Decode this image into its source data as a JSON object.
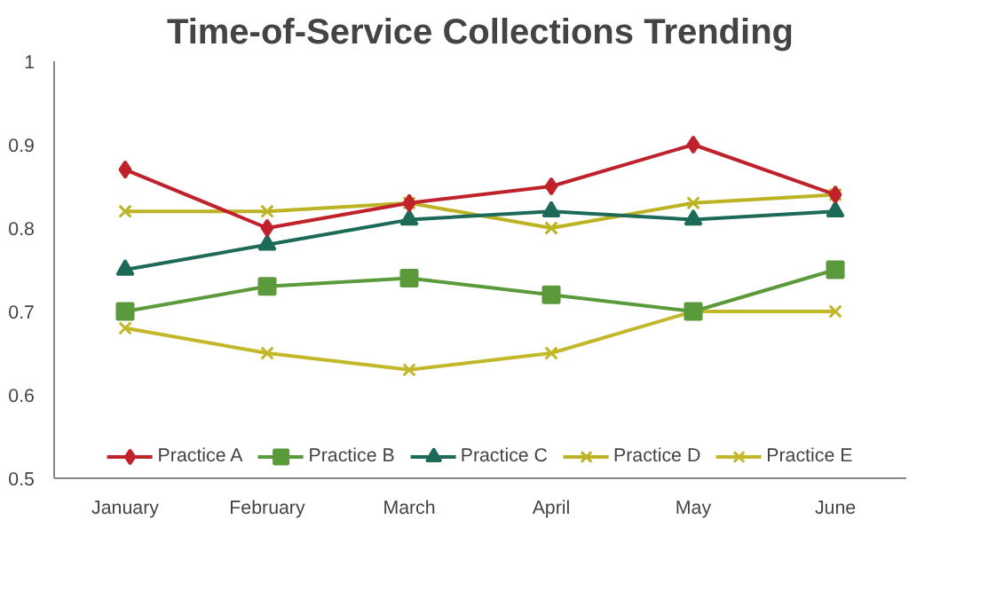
{
  "chart_data": {
    "type": "line",
    "title": "Time-of-Service Collections Trending",
    "categories": [
      "January",
      "February",
      "March",
      "April",
      "May",
      "June"
    ],
    "series": [
      {
        "name": "Practice A",
        "color": "#c0222c",
        "marker": "diamond",
        "values": [
          0.87,
          0.8,
          0.83,
          0.85,
          0.9,
          0.84
        ]
      },
      {
        "name": "Practice B",
        "color": "#5b9a3b",
        "marker": "square",
        "values": [
          0.7,
          0.73,
          0.74,
          0.72,
          0.7,
          0.75
        ]
      },
      {
        "name": "Practice C",
        "color": "#1d6a58",
        "marker": "triangle",
        "values": [
          0.75,
          0.78,
          0.81,
          0.82,
          0.81,
          0.82
        ]
      },
      {
        "name": "Practice D",
        "color": "#bcb324",
        "marker": "cross",
        "values": [
          0.82,
          0.82,
          0.83,
          0.8,
          0.83,
          0.84
        ]
      },
      {
        "name": "Practice E",
        "color": "#c2b82a",
        "marker": "cross",
        "values": [
          0.68,
          0.65,
          0.63,
          0.65,
          0.7,
          0.7
        ]
      }
    ],
    "ylim": [
      0.5,
      1
    ],
    "yticks": [
      0.5,
      0.6,
      0.7,
      0.8,
      0.9,
      {
        "value": 1,
        "label": "1"
      }
    ],
    "grid": false,
    "legend": "bottom"
  }
}
